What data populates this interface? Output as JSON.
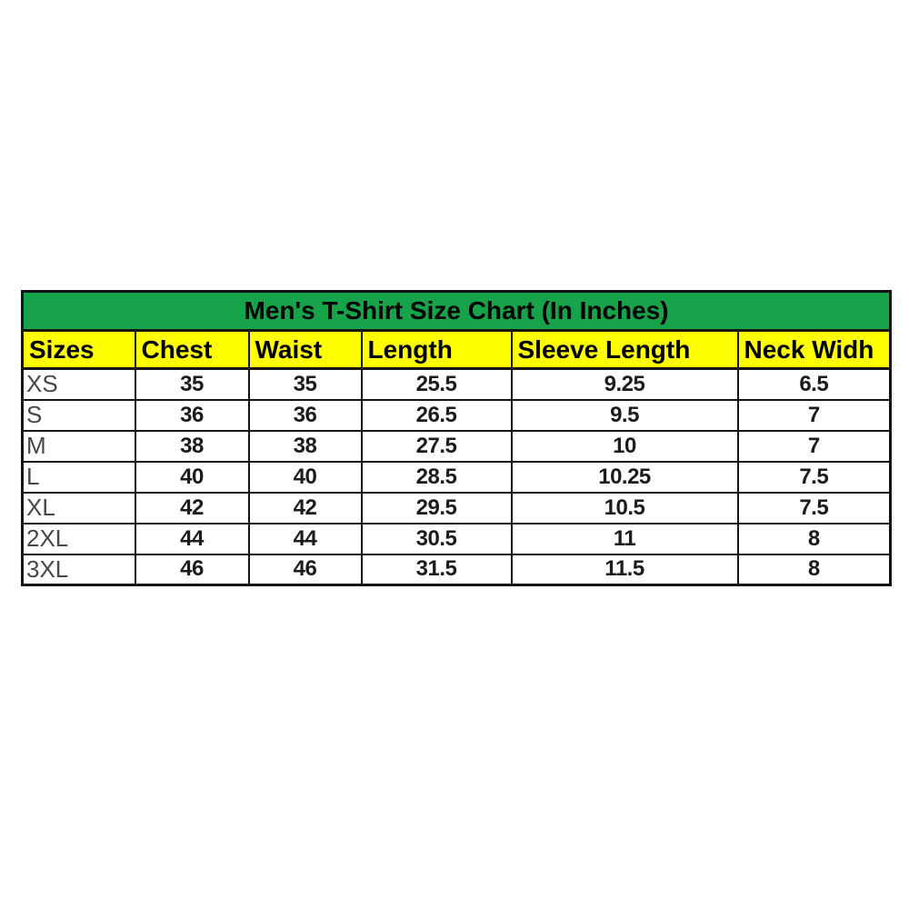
{
  "chart_data": {
    "type": "table",
    "title": "Men's T-Shirt Size Chart (In Inches)",
    "columns": [
      "Sizes",
      "Chest",
      "Waist",
      "Length",
      "Sleeve Length",
      "Neck Widh"
    ],
    "rows": [
      [
        "XS",
        "35",
        "35",
        "25.5",
        "9.25",
        "6.5"
      ],
      [
        "S",
        "36",
        "36",
        "26.5",
        "9.5",
        "7"
      ],
      [
        "M",
        "38",
        "38",
        "27.5",
        "10",
        "7"
      ],
      [
        "L",
        "40",
        "40",
        "28.5",
        "10.25",
        "7.5"
      ],
      [
        "XL",
        "42",
        "42",
        "29.5",
        "10.5",
        "7.5"
      ],
      [
        "2XL",
        "44",
        "44",
        "30.5",
        "11",
        "8"
      ],
      [
        "3XL",
        "46",
        "46",
        "31.5",
        "11.5",
        "8"
      ]
    ],
    "units": "inches"
  },
  "colors": {
    "title_background": "#16a34a",
    "header_background": "#ffff00",
    "border": "#141414",
    "title_text": "#000000",
    "size_label_text": "#474747",
    "value_text": "#1c1c1c",
    "page_background": "#ffffff"
  }
}
